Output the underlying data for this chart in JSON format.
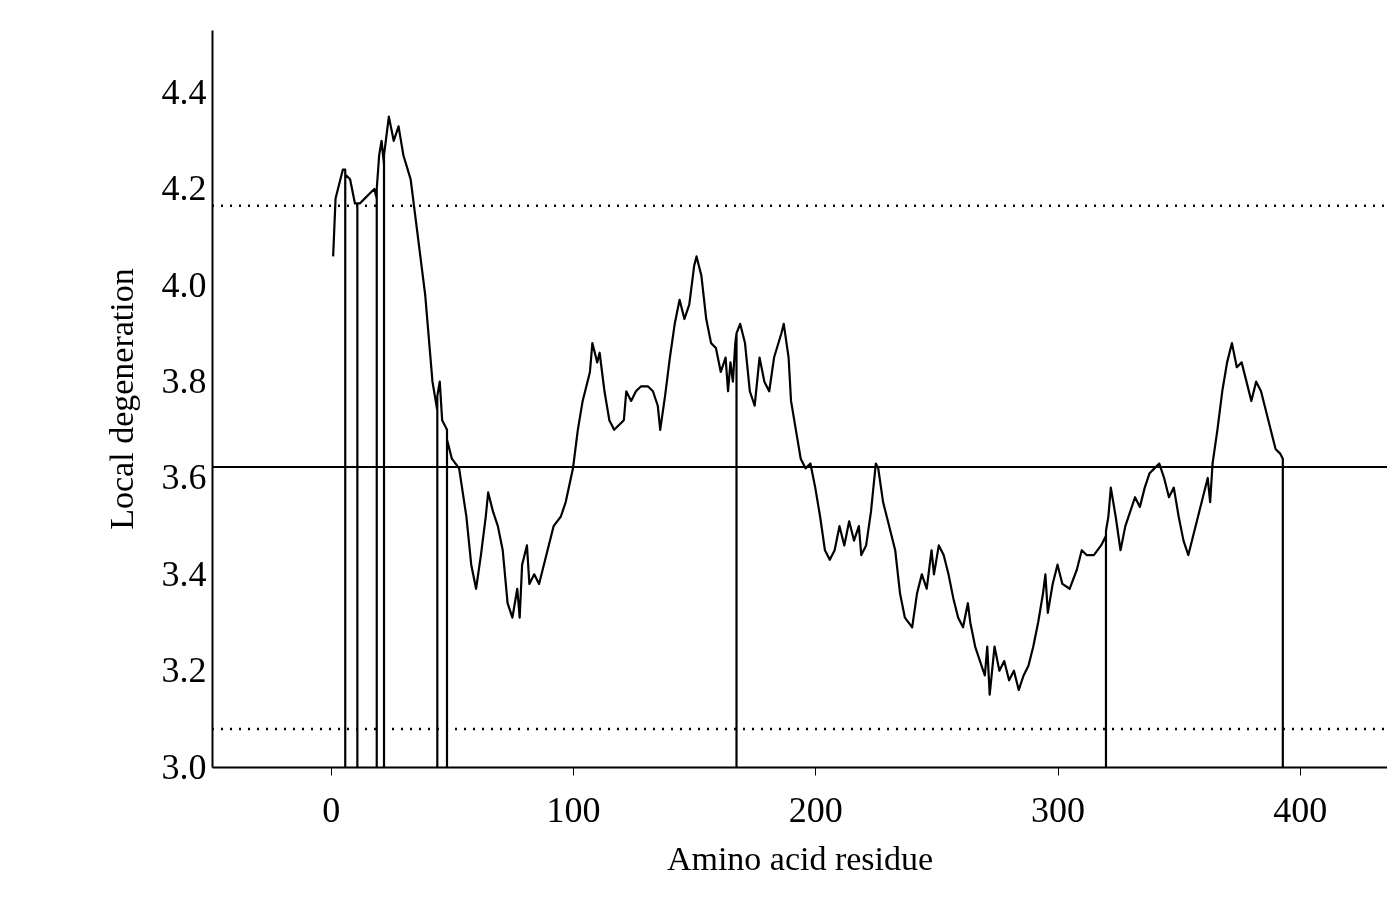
{
  "chart_data": {
    "type": "line",
    "xlabel": "Amino acid residue",
    "ylabel": "Local degeneration",
    "xlim": [
      -49,
      436
    ],
    "ylim": [
      3.0,
      4.53
    ],
    "xticks": [
      0,
      100,
      200,
      300,
      400
    ],
    "yticks": [
      {
        "value": 3.0,
        "label": "3.0"
      },
      {
        "value": 3.2,
        "label": "3.2"
      },
      {
        "value": 3.4,
        "label": "3.4"
      },
      {
        "value": 3.6,
        "label": "3.6"
      },
      {
        "value": 3.8,
        "label": "3.8"
      },
      {
        "value": 4.0,
        "label": "4.0"
      },
      {
        "value": 4.2,
        "label": "4.2"
      },
      {
        "value": 4.4,
        "label": "4.4"
      }
    ],
    "grid": false,
    "marker": "none",
    "line_style": "solid",
    "series": [
      {
        "color": "#000000",
        "x": [
          1,
          2,
          4,
          5,
          6,
          6,
          6,
          8,
          10,
          11,
          11,
          11,
          12,
          14,
          16,
          18,
          19,
          19,
          19,
          20,
          21,
          22,
          22,
          22,
          24,
          26,
          28,
          30,
          33,
          36,
          39,
          42,
          44,
          44,
          44,
          45,
          46,
          48,
          48,
          48,
          50,
          53,
          56,
          58,
          60,
          62,
          64,
          65,
          67,
          69,
          71,
          73,
          75,
          77,
          78,
          79,
          81,
          82,
          84,
          86,
          88,
          90,
          92,
          95,
          97,
          100,
          102,
          104,
          107,
          108,
          110,
          111,
          113,
          115,
          117,
          119,
          121,
          122,
          124,
          126,
          128,
          131,
          133,
          135,
          136,
          138,
          140,
          142,
          144,
          146,
          148,
          150,
          151,
          153,
          155,
          157,
          159,
          161,
          163,
          164,
          165,
          166,
          167,
          167.5,
          167.5,
          167.5,
          169,
          171,
          173,
          175,
          177,
          179,
          181,
          183,
          186,
          187,
          189,
          190,
          192,
          194,
          196,
          198,
          200,
          202,
          204,
          206,
          208,
          210,
          212,
          214,
          216,
          218,
          219,
          221,
          223,
          225,
          226,
          228,
          230,
          233,
          235,
          237,
          240,
          242,
          244,
          246,
          248,
          249,
          251,
          253,
          255,
          257,
          259,
          261,
          263,
          264,
          266,
          268,
          270,
          271,
          272,
          274,
          276,
          278,
          280,
          282,
          284,
          286,
          288,
          290,
          292,
          294,
          295,
          296,
          298,
          300,
          302,
          305,
          308,
          310,
          312,
          315,
          318,
          320,
          320,
          320,
          321,
          322,
          324,
          326,
          328,
          330,
          332,
          334,
          336,
          338,
          340,
          342,
          344,
          346,
          348,
          350,
          352,
          354,
          356,
          358,
          360,
          362,
          363,
          364,
          366,
          368,
          370,
          372,
          374,
          376,
          378,
          380,
          382,
          384,
          386,
          388,
          390,
          392,
          393,
          393
        ],
        "values": [
          4.06,
          4.18,
          4.22,
          4.24,
          4.24,
          3.0,
          4.23,
          4.22,
          4.17,
          4.17,
          3.0,
          4.17,
          4.17,
          4.18,
          4.19,
          4.2,
          4.18,
          3.0,
          4.2,
          4.27,
          4.3,
          4.25,
          3.0,
          4.27,
          4.35,
          4.3,
          4.33,
          4.27,
          4.22,
          4.1,
          3.98,
          3.8,
          3.74,
          3.0,
          3.77,
          3.8,
          3.72,
          3.7,
          3.0,
          3.68,
          3.64,
          3.62,
          3.52,
          3.42,
          3.37,
          3.44,
          3.52,
          3.57,
          3.53,
          3.5,
          3.45,
          3.34,
          3.31,
          3.37,
          3.31,
          3.42,
          3.46,
          3.38,
          3.4,
          3.38,
          3.42,
          3.46,
          3.5,
          3.52,
          3.55,
          3.62,
          3.7,
          3.76,
          3.82,
          3.88,
          3.84,
          3.86,
          3.78,
          3.72,
          3.7,
          3.71,
          3.72,
          3.78,
          3.76,
          3.78,
          3.79,
          3.79,
          3.78,
          3.75,
          3.7,
          3.77,
          3.85,
          3.92,
          3.97,
          3.93,
          3.96,
          4.04,
          4.06,
          4.02,
          3.93,
          3.88,
          3.87,
          3.82,
          3.85,
          3.78,
          3.84,
          3.8,
          3.88,
          3.9,
          3.0,
          3.9,
          3.92,
          3.88,
          3.78,
          3.75,
          3.85,
          3.8,
          3.78,
          3.85,
          3.9,
          3.92,
          3.85,
          3.76,
          3.7,
          3.64,
          3.62,
          3.63,
          3.58,
          3.52,
          3.45,
          3.43,
          3.45,
          3.5,
          3.46,
          3.51,
          3.47,
          3.5,
          3.44,
          3.46,
          3.53,
          3.63,
          3.62,
          3.55,
          3.51,
          3.45,
          3.36,
          3.31,
          3.29,
          3.36,
          3.4,
          3.37,
          3.45,
          3.4,
          3.46,
          3.44,
          3.4,
          3.35,
          3.31,
          3.29,
          3.34,
          3.3,
          3.25,
          3.22,
          3.19,
          3.25,
          3.15,
          3.25,
          3.2,
          3.22,
          3.18,
          3.2,
          3.16,
          3.19,
          3.21,
          3.25,
          3.3,
          3.36,
          3.4,
          3.32,
          3.38,
          3.42,
          3.38,
          3.37,
          3.41,
          3.45,
          3.44,
          3.44,
          3.46,
          3.48,
          3.0,
          3.49,
          3.52,
          3.58,
          3.52,
          3.45,
          3.5,
          3.53,
          3.56,
          3.54,
          3.58,
          3.61,
          3.62,
          3.63,
          3.6,
          3.56,
          3.58,
          3.52,
          3.47,
          3.44,
          3.48,
          3.52,
          3.56,
          3.6,
          3.55,
          3.63,
          3.7,
          3.78,
          3.84,
          3.88,
          3.83,
          3.84,
          3.8,
          3.76,
          3.8,
          3.78,
          3.74,
          3.7,
          3.66,
          3.65,
          3.64,
          3.0
        ]
      }
    ],
    "ref_lines": [
      {
        "axis": "y",
        "value": 3.623,
        "color": "#000000",
        "line_style": "solid"
      },
      {
        "axis": "y",
        "value": 4.165,
        "color": "#000000",
        "line_style": "dotted"
      },
      {
        "axis": "y",
        "value": 3.079,
        "color": "#000000",
        "line_style": "dotted"
      }
    ]
  }
}
